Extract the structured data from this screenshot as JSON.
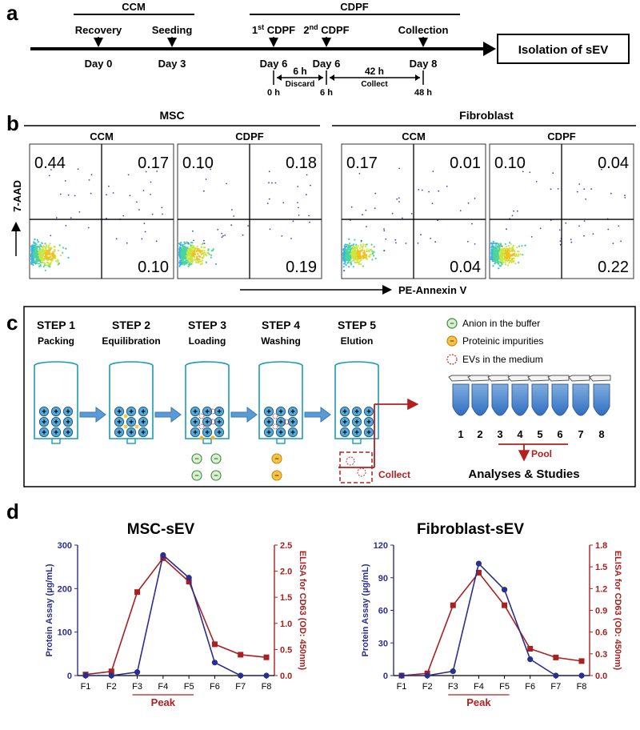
{
  "panel_a": {
    "label": "a",
    "ccm_group": "CCM",
    "cdpf_group": "CDPF",
    "events": [
      {
        "top": "Recovery",
        "bottom": "Day 0"
      },
      {
        "top": "Seeding",
        "bottom": "Day 3"
      },
      {
        "top": "1st CDPF",
        "bottom": "Day 6"
      },
      {
        "top": "2nd CDPF",
        "bottom": "Day 6"
      },
      {
        "top": "Collection",
        "bottom": "Day 8"
      }
    ],
    "first_cdpf": {
      "num": "1",
      "sup": "st",
      "rest": " CDPF"
    },
    "second_cdpf": {
      "num": "2",
      "sup": "nd",
      "rest": " CDPF"
    },
    "result": "Isolation of sEV",
    "sub_timeline": {
      "ticks": [
        "0 h",
        "6 h",
        "48 h"
      ],
      "seg1_duration": "6 h",
      "seg1_label": "Discard",
      "seg2_duration": "42 h",
      "seg2_label": "Collect"
    }
  },
  "panel_b": {
    "label": "b",
    "group_msc": "MSC",
    "group_fib": "Fibroblast",
    "y_axis": "7-AAD",
    "x_axis": "PE-Annexin V",
    "plots": [
      {
        "title": "CCM",
        "ul": "0.44",
        "ur": "0.17",
        "lr": "0.10"
      },
      {
        "title": "CDPF",
        "ul": "0.10",
        "ur": "0.18",
        "lr": "0.19"
      },
      {
        "title": "CCM",
        "ul": "0.17",
        "ur": "0.01",
        "lr": "0.04"
      },
      {
        "title": "CDPF",
        "ul": "0.10",
        "ur": "0.04",
        "lr": "0.22"
      }
    ]
  },
  "panel_c": {
    "label": "c",
    "steps": [
      {
        "title": "STEP 1",
        "sub": "Packing"
      },
      {
        "title": "STEP 2",
        "sub": "Equilibration"
      },
      {
        "title": "STEP 3",
        "sub": "Loading"
      },
      {
        "title": "STEP 4",
        "sub": "Washing"
      },
      {
        "title": "STEP 5",
        "sub": "Elution"
      }
    ],
    "legend": [
      "Anion in the buffer",
      "Proteinic impurities",
      "EVs in the medium"
    ],
    "collect": "Collect",
    "tubes": [
      "1",
      "2",
      "3",
      "4",
      "5",
      "6",
      "7",
      "8"
    ],
    "pool": "Pool",
    "analyses": "Analyses & Studies"
  },
  "panel_d": {
    "label": "d",
    "colors": {
      "protein": "#2a2e8c",
      "elisa": "#a8201f"
    },
    "peak_label": "Peak"
  },
  "chart_data": [
    {
      "type": "line",
      "title": "MSC-sEV",
      "categories": [
        "F1",
        "F2",
        "F3",
        "F4",
        "F5",
        "F6",
        "F7",
        "F8"
      ],
      "ylabel": "Protein Assay (µg/mL)",
      "y2label": "ELISA for CD63 (OD: 450nm)",
      "ylim": [
        0,
        300
      ],
      "y2lim": [
        0,
        2.5
      ],
      "yticks": [
        "0",
        "100",
        "200",
        "300"
      ],
      "y2ticks": [
        "0.0",
        "0.5",
        "1.0",
        "1.5",
        "2.0",
        "2.5"
      ],
      "series": [
        {
          "name": "Protein Assay",
          "axis": "left",
          "values": [
            0,
            0,
            8,
            277,
            225,
            30,
            0,
            0
          ]
        },
        {
          "name": "ELISA for CD63",
          "axis": "right",
          "values": [
            0.02,
            0.08,
            1.6,
            2.25,
            1.8,
            0.6,
            0.4,
            0.35
          ]
        }
      ]
    },
    {
      "type": "line",
      "title": "Fibroblast-sEV",
      "categories": [
        "F1",
        "F2",
        "F3",
        "F4",
        "F5",
        "F6",
        "F7",
        "F8"
      ],
      "ylabel": "Protein Assay (µg/mL)",
      "y2label": "ELISA for CD63 (OD: 450nm)",
      "ylim": [
        0,
        120
      ],
      "y2lim": [
        0,
        1.8
      ],
      "yticks": [
        "0",
        "30",
        "60",
        "90",
        "120"
      ],
      "y2ticks": [
        "0.0",
        "0.3",
        "0.6",
        "0.9",
        "1.2",
        "1.5",
        "1.8"
      ],
      "series": [
        {
          "name": "Protein Assay",
          "axis": "left",
          "values": [
            0,
            0,
            4,
            103,
            79,
            15,
            0,
            0
          ]
        },
        {
          "name": "ELISA for CD63",
          "axis": "right",
          "values": [
            0.0,
            0.03,
            0.97,
            1.42,
            0.97,
            0.37,
            0.25,
            0.2
          ]
        }
      ]
    }
  ]
}
